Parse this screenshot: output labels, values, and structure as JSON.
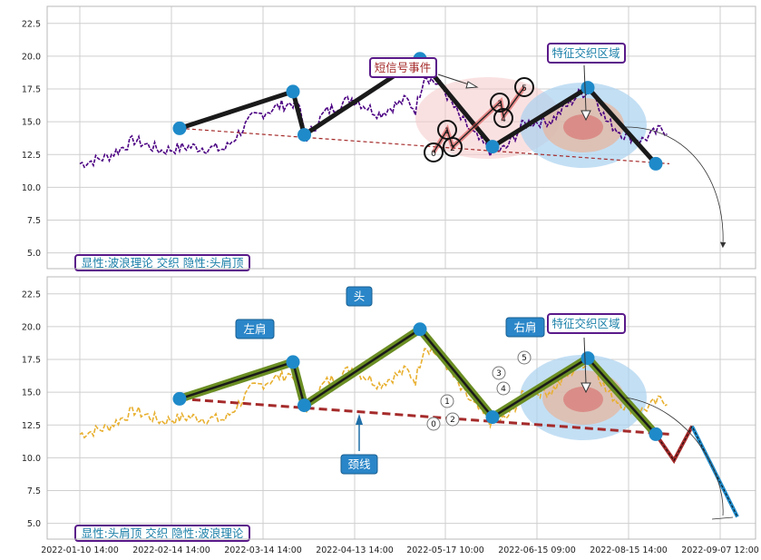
{
  "chart_data": [
    {
      "type": "line",
      "panel": "top",
      "ylim": [
        3.8,
        23.8
      ],
      "yticks": [
        "5.0",
        "7.5",
        "10.0",
        "12.5",
        "15.0",
        "17.5",
        "20.0",
        "22.5"
      ],
      "price_waypoints": [
        [
          0,
          11.8
        ],
        [
          6,
          12.3
        ],
        [
          12,
          13.6
        ],
        [
          18,
          12.8
        ],
        [
          24,
          13.1
        ],
        [
          32,
          12.9
        ],
        [
          38,
          15.3
        ],
        [
          44,
          16.2
        ],
        [
          48,
          16.5
        ],
        [
          50,
          13.8
        ],
        [
          54,
          15.7
        ],
        [
          60,
          16.8
        ],
        [
          66,
          15.6
        ],
        [
          72,
          16.7
        ],
        [
          74,
          15.9
        ],
        [
          76,
          18.6
        ],
        [
          80,
          17.6
        ],
        [
          84,
          15.2
        ],
        [
          88,
          13.6
        ],
        [
          91,
          12.6
        ],
        [
          94,
          13.0
        ],
        [
          98,
          14.9
        ],
        [
          104,
          15.1
        ],
        [
          110,
          17.1
        ],
        [
          113,
          17.5
        ],
        [
          116,
          15.1
        ],
        [
          120,
          14.0
        ],
        [
          124,
          13.6
        ],
        [
          128,
          14.4
        ],
        [
          130,
          14.3
        ]
      ],
      "pattern_points": [
        {
          "x": 22,
          "y": 14.5
        },
        {
          "x": 47,
          "y": 17.3
        },
        {
          "x": 49.5,
          "y": 14.0
        },
        {
          "x": 75,
          "y": 19.8
        },
        {
          "x": 91,
          "y": 13.1
        },
        {
          "x": 112,
          "y": 17.6
        },
        {
          "x": 127,
          "y": 11.8
        }
      ],
      "neckline": [
        [
          22,
          14.5
        ],
        [
          130,
          11.8
        ]
      ],
      "wave_labels": [
        "0",
        "1",
        "2",
        "3",
        "4",
        "5"
      ],
      "annotations": {
        "short_signal": "短信号事件",
        "feature_zone": "特征交织区域"
      },
      "legend": "显性:波浪理论 交织 隐性:头肩顶"
    },
    {
      "type": "line",
      "panel": "bottom",
      "ylim": [
        3.8,
        23.8
      ],
      "yticks": [
        "5.0",
        "7.5",
        "10.0",
        "12.5",
        "15.0",
        "17.5",
        "20.0",
        "22.5"
      ],
      "pattern_points": [
        {
          "x": 22,
          "y": 14.5
        },
        {
          "x": 47,
          "y": 17.3
        },
        {
          "x": 49.5,
          "y": 14.0
        },
        {
          "x": 75,
          "y": 19.8
        },
        {
          "x": 91,
          "y": 13.1
        },
        {
          "x": 112,
          "y": 17.6
        },
        {
          "x": 127,
          "y": 11.8
        }
      ],
      "neckline": [
        [
          22,
          14.5
        ],
        [
          130,
          11.8
        ]
      ],
      "projection": [
        [
          127,
          11.8
        ],
        [
          131,
          9.8
        ],
        [
          135,
          12.4
        ],
        [
          145,
          5.5
        ]
      ],
      "wave_labels": [
        "0",
        "1",
        "2",
        "3",
        "4",
        "5"
      ],
      "annotations": {
        "head": "头",
        "left_shoulder": "左肩",
        "right_shoulder": "右肩",
        "neckline": "颈线",
        "feature_zone": "特征交织区域"
      },
      "legend": "显性:头肩顶 交织 隐性:波浪理论",
      "x_ticks": [
        "2022-01-10 14:00",
        "2022-02-14 14:00",
        "2022-03-14 14:00",
        "2022-04-13 14:00",
        "2022-05-17 10:00",
        "2022-06-15 09:00",
        "2022-08-15 14:00",
        "2022-09-07 12:00"
      ]
    }
  ],
  "colors": {
    "price_top": "#4b0082",
    "price_bottom": "#e8b030",
    "pattern_line": "#1a1a1a",
    "pattern_glow": "#6b8e23",
    "neckline": "#a52a2a",
    "point": "#1f8ac9",
    "label_box": "#2a86c8",
    "legend_border": "#5a1a8a",
    "legend_text": "#1a7fa8"
  }
}
